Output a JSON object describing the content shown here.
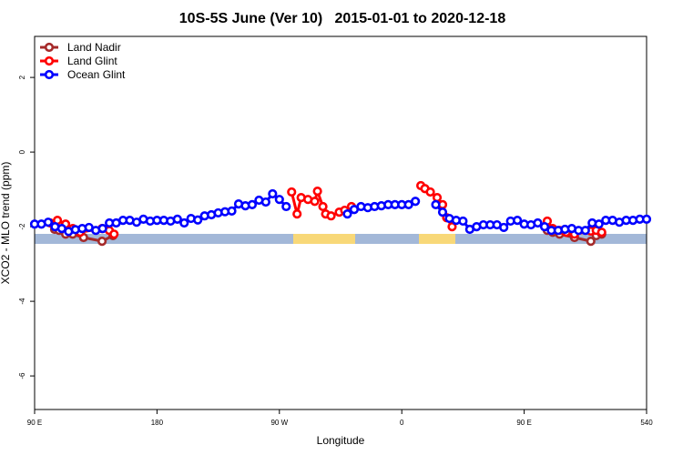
{
  "chart_data": {
    "type": "line",
    "title": "10S-5S June (Ver 10)   2015-01-01 to 2020-12-18",
    "xlabel": "Longitude",
    "ylabel": "XCO2 - MLO trend (ppm)",
    "xlim": [
      90,
      540
    ],
    "ylim": [
      -6.9,
      3.1
    ],
    "xticks": [
      {
        "value": 90,
        "label": "90 E"
      },
      180,
      {
        "value": 270,
        "label": "90 W"
      },
      {
        "value": 360,
        "label": "0"
      },
      {
        "value": 450,
        "label": "90 E"
      },
      540
    ],
    "yticks": [
      2,
      0,
      -2,
      -4,
      -6
    ],
    "legend": "top-left",
    "series": [
      {
        "name": "Land Nadir",
        "color": "#a52a2a",
        "x": [
          104.7,
          108,
          112.8,
          118,
          126,
          139.6,
          147.6,
          300,
          467,
          471,
          476,
          487,
          499,
          503,
          507
        ],
        "values": [
          -2.07,
          -2.1,
          -2.2,
          -2.2,
          -2.29,
          -2.39,
          -2.24,
          null,
          -2.1,
          -2.15,
          -2.2,
          -2.29,
          -2.39,
          -2.24,
          -2.2
        ]
      },
      {
        "name": "Land Glint",
        "color": "#ff0000",
        "x": [
          101.4,
          106.8,
          112.8,
          118.1,
          123.5,
          139.6,
          144.9,
          148.4,
          200,
          279,
          283,
          286,
          291,
          296,
          298,
          302,
          304,
          308,
          314,
          318,
          323,
          350,
          374,
          377,
          381,
          386,
          390,
          393,
          397,
          430,
          467,
          471,
          476,
          481,
          487,
          499,
          503,
          507
        ],
        "values": [
          -1.9,
          -1.83,
          -1.93,
          -2.05,
          -2.15,
          -2.05,
          -2.1,
          -2.2,
          null,
          -1.07,
          -1.66,
          -1.22,
          -1.27,
          -1.32,
          -1.05,
          -1.46,
          -1.66,
          -1.71,
          -1.61,
          -1.56,
          -1.46,
          null,
          -0.9,
          -0.98,
          -1.07,
          -1.22,
          -1.41,
          -1.76,
          -2.0,
          null,
          -1.85,
          -2.05,
          -2.1,
          -2.15,
          -2.2,
          -2.12,
          -2.1,
          -2.15
        ]
      },
      {
        "name": "Ocean Glint",
        "color": "#0000ff",
        "x": [
          90,
          95,
          100,
          105,
          110,
          115,
          120,
          125,
          130,
          135,
          140,
          145,
          150,
          155,
          160,
          165,
          170,
          175,
          180,
          185,
          190,
          195,
          200,
          205,
          210,
          215,
          220,
          225,
          230,
          235,
          240,
          245,
          250,
          255,
          260,
          265,
          270,
          275,
          300,
          320,
          325,
          330,
          335,
          340,
          345,
          350,
          355,
          360,
          365,
          370,
          378,
          385,
          390,
          395,
          400,
          405,
          410,
          415,
          420,
          425,
          430,
          435,
          440,
          445,
          450,
          455,
          460,
          465,
          470,
          475,
          480,
          485,
          490,
          495,
          500,
          505,
          510,
          515,
          520,
          525,
          530,
          535,
          540
        ],
        "values": [
          -1.93,
          -1.93,
          -1.88,
          -2.0,
          -2.05,
          -2.13,
          -2.08,
          -2.05,
          -2.02,
          -2.1,
          -2.05,
          -1.9,
          -1.9,
          -1.83,
          -1.83,
          -1.88,
          -1.8,
          -1.85,
          -1.83,
          -1.83,
          -1.85,
          -1.8,
          -1.9,
          -1.78,
          -1.82,
          -1.71,
          -1.68,
          -1.63,
          -1.6,
          -1.58,
          -1.39,
          -1.44,
          -1.41,
          -1.29,
          -1.34,
          -1.12,
          -1.27,
          -1.46,
          null,
          -1.66,
          -1.54,
          -1.46,
          -1.49,
          -1.46,
          -1.44,
          -1.41,
          -1.41,
          -1.41,
          -1.41,
          -1.32,
          null,
          -1.41,
          -1.61,
          -1.78,
          -1.83,
          -1.85,
          -2.07,
          -2.0,
          -1.95,
          -1.95,
          -1.95,
          -2.02,
          -1.85,
          -1.83,
          -1.93,
          -1.95,
          -1.9,
          -2.0,
          -2.1,
          -2.1,
          -2.07,
          -2.05,
          -2.1,
          -2.1,
          -1.9,
          -1.93,
          -1.83,
          -1.83,
          -1.88,
          -1.83,
          -1.83,
          -1.8,
          -1.8
        ]
      }
    ]
  }
}
